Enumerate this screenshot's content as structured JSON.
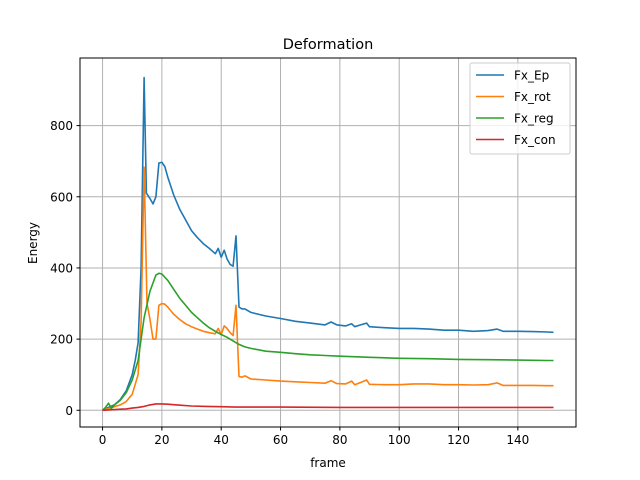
{
  "chart_data": {
    "type": "line",
    "title": "Deformation",
    "xlabel": "frame",
    "ylabel": "Energy",
    "xlim": [
      -7.6,
      159.6
    ],
    "ylim": [
      -47,
      990
    ],
    "xticks": [
      0,
      20,
      40,
      60,
      80,
      100,
      120,
      140
    ],
    "yticks": [
      0,
      200,
      400,
      600,
      800
    ],
    "grid": true,
    "legend_position": "top-right",
    "series": [
      {
        "name": "Fx_Ep",
        "color": "#1f77b4",
        "points": [
          [
            0,
            0
          ],
          [
            2,
            8
          ],
          [
            4,
            15
          ],
          [
            6,
            30
          ],
          [
            8,
            55
          ],
          [
            10,
            100
          ],
          [
            11,
            140
          ],
          [
            12,
            190
          ],
          [
            13,
            400
          ],
          [
            14,
            935
          ],
          [
            14.8,
            610
          ],
          [
            16,
            595
          ],
          [
            17,
            580
          ],
          [
            18,
            600
          ],
          [
            19,
            695
          ],
          [
            20,
            697
          ],
          [
            21,
            685
          ],
          [
            22,
            655
          ],
          [
            24,
            605
          ],
          [
            26,
            565
          ],
          [
            28,
            535
          ],
          [
            30,
            505
          ],
          [
            32,
            485
          ],
          [
            34,
            468
          ],
          [
            36,
            455
          ],
          [
            38,
            440
          ],
          [
            39,
            455
          ],
          [
            40,
            430
          ],
          [
            41,
            450
          ],
          [
            42,
            425
          ],
          [
            43,
            410
          ],
          [
            44,
            405
          ],
          [
            45,
            490
          ],
          [
            46,
            290
          ],
          [
            47,
            285
          ],
          [
            48,
            285
          ],
          [
            50,
            275
          ],
          [
            55,
            265
          ],
          [
            60,
            258
          ],
          [
            65,
            250
          ],
          [
            70,
            245
          ],
          [
            75,
            240
          ],
          [
            77,
            248
          ],
          [
            79,
            240
          ],
          [
            82,
            237
          ],
          [
            84,
            243
          ],
          [
            85,
            235
          ],
          [
            87,
            240
          ],
          [
            89,
            245
          ],
          [
            90,
            235
          ],
          [
            95,
            232
          ],
          [
            100,
            230
          ],
          [
            105,
            230
          ],
          [
            110,
            228
          ],
          [
            115,
            225
          ],
          [
            120,
            225
          ],
          [
            125,
            222
          ],
          [
            130,
            224
          ],
          [
            133,
            228
          ],
          [
            135,
            222
          ],
          [
            140,
            222
          ],
          [
            145,
            221
          ],
          [
            150,
            220
          ],
          [
            152,
            219
          ]
        ]
      },
      {
        "name": "Fx_rot",
        "color": "#ff7f0e",
        "points": [
          [
            0,
            0
          ],
          [
            2,
            5
          ],
          [
            4,
            10
          ],
          [
            6,
            15
          ],
          [
            8,
            25
          ],
          [
            10,
            45
          ],
          [
            12,
            100
          ],
          [
            13,
            250
          ],
          [
            14,
            683
          ],
          [
            15,
            300
          ],
          [
            16,
            255
          ],
          [
            17,
            200
          ],
          [
            18,
            200
          ],
          [
            19,
            295
          ],
          [
            20,
            300
          ],
          [
            21,
            298
          ],
          [
            22,
            290
          ],
          [
            24,
            270
          ],
          [
            26,
            255
          ],
          [
            28,
            243
          ],
          [
            30,
            235
          ],
          [
            32,
            228
          ],
          [
            34,
            222
          ],
          [
            36,
            218
          ],
          [
            38,
            215
          ],
          [
            39,
            230
          ],
          [
            40,
            212
          ],
          [
            41,
            237
          ],
          [
            42,
            230
          ],
          [
            43,
            218
          ],
          [
            44,
            210
          ],
          [
            45,
            295
          ],
          [
            46,
            95
          ],
          [
            47,
            93
          ],
          [
            48,
            97
          ],
          [
            50,
            88
          ],
          [
            55,
            85
          ],
          [
            60,
            82
          ],
          [
            65,
            80
          ],
          [
            70,
            78
          ],
          [
            75,
            76
          ],
          [
            77,
            83
          ],
          [
            79,
            75
          ],
          [
            82,
            74
          ],
          [
            84,
            82
          ],
          [
            85,
            72
          ],
          [
            87,
            78
          ],
          [
            89,
            85
          ],
          [
            90,
            73
          ],
          [
            95,
            72
          ],
          [
            100,
            72
          ],
          [
            105,
            74
          ],
          [
            110,
            74
          ],
          [
            115,
            72
          ],
          [
            120,
            72
          ],
          [
            125,
            71
          ],
          [
            130,
            72
          ],
          [
            133,
            77
          ],
          [
            135,
            70
          ],
          [
            140,
            70
          ],
          [
            145,
            70
          ],
          [
            150,
            69
          ],
          [
            152,
            69
          ]
        ]
      },
      {
        "name": "Fx_reg",
        "color": "#2ca02c",
        "points": [
          [
            0,
            0
          ],
          [
            1,
            8
          ],
          [
            2,
            20
          ],
          [
            3,
            5
          ],
          [
            4,
            15
          ],
          [
            6,
            28
          ],
          [
            8,
            50
          ],
          [
            10,
            85
          ],
          [
            12,
            140
          ],
          [
            14,
            260
          ],
          [
            16,
            335
          ],
          [
            18,
            380
          ],
          [
            19,
            385
          ],
          [
            20,
            383
          ],
          [
            22,
            365
          ],
          [
            24,
            340
          ],
          [
            26,
            315
          ],
          [
            28,
            295
          ],
          [
            30,
            275
          ],
          [
            32,
            260
          ],
          [
            34,
            245
          ],
          [
            36,
            232
          ],
          [
            38,
            222
          ],
          [
            40,
            213
          ],
          [
            42,
            205
          ],
          [
            44,
            195
          ],
          [
            46,
            185
          ],
          [
            48,
            178
          ],
          [
            50,
            174
          ],
          [
            55,
            166
          ],
          [
            60,
            163
          ],
          [
            65,
            159
          ],
          [
            70,
            156
          ],
          [
            75,
            154
          ],
          [
            80,
            152
          ],
          [
            90,
            149
          ],
          [
            100,
            146
          ],
          [
            110,
            145
          ],
          [
            120,
            143
          ],
          [
            130,
            142
          ],
          [
            140,
            141
          ],
          [
            150,
            140
          ],
          [
            152,
            140
          ]
        ]
      },
      {
        "name": "Fx_con",
        "color": "#d62728",
        "points": [
          [
            0,
            0
          ],
          [
            2,
            1
          ],
          [
            4,
            2
          ],
          [
            6,
            3
          ],
          [
            8,
            4
          ],
          [
            10,
            6
          ],
          [
            12,
            8
          ],
          [
            14,
            11
          ],
          [
            16,
            15
          ],
          [
            18,
            18
          ],
          [
            20,
            18
          ],
          [
            22,
            17
          ],
          [
            25,
            15
          ],
          [
            30,
            12
          ],
          [
            35,
            11
          ],
          [
            40,
            10
          ],
          [
            45,
            9
          ],
          [
            50,
            9
          ],
          [
            60,
            9
          ],
          [
            80,
            8
          ],
          [
            100,
            8
          ],
          [
            120,
            8
          ],
          [
            140,
            8
          ],
          [
            152,
            8
          ]
        ]
      }
    ]
  }
}
